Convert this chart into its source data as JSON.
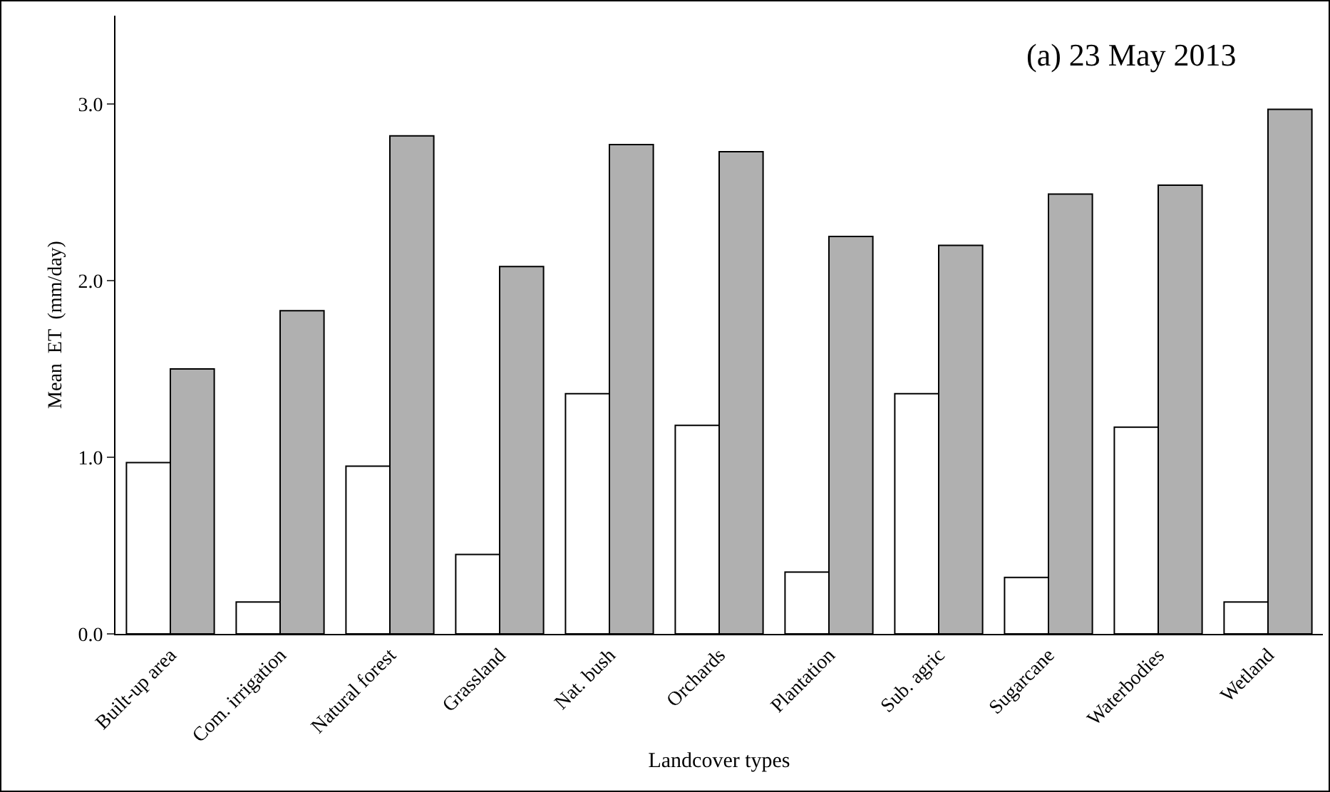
{
  "chart_data": {
    "type": "bar",
    "xlabel": "Landcover types",
    "ylabel": "Mean  ET  (mm/day)",
    "annotations": [
      "(a) 23 May 2013"
    ],
    "categories": [
      "Built-up area",
      "Com. irrigation",
      "Natural forest",
      "Grassland",
      "Nat. bush",
      "Orchards",
      "Plantation",
      "Sub. agric",
      "Sugarcane",
      "Waterbodies",
      "Wetland"
    ],
    "series": [
      {
        "color": "#ffffff",
        "values": [
          0.97,
          0.18,
          0.95,
          0.45,
          1.36,
          1.18,
          0.35,
          1.36,
          0.32,
          1.17,
          0.18
        ]
      },
      {
        "color": "#b0b0b0",
        "values": [
          1.5,
          1.83,
          2.82,
          2.08,
          2.77,
          2.73,
          2.25,
          2.2,
          2.49,
          2.54,
          2.97
        ]
      }
    ],
    "ylim": [
      0,
      3.5
    ],
    "yticks": [
      {
        "value": 0,
        "label": "0.0"
      },
      {
        "value": 1,
        "label": "1.0"
      },
      {
        "value": 2,
        "label": "2.0"
      },
      {
        "value": 3,
        "label": "3.0"
      }
    ],
    "grid": false
  }
}
